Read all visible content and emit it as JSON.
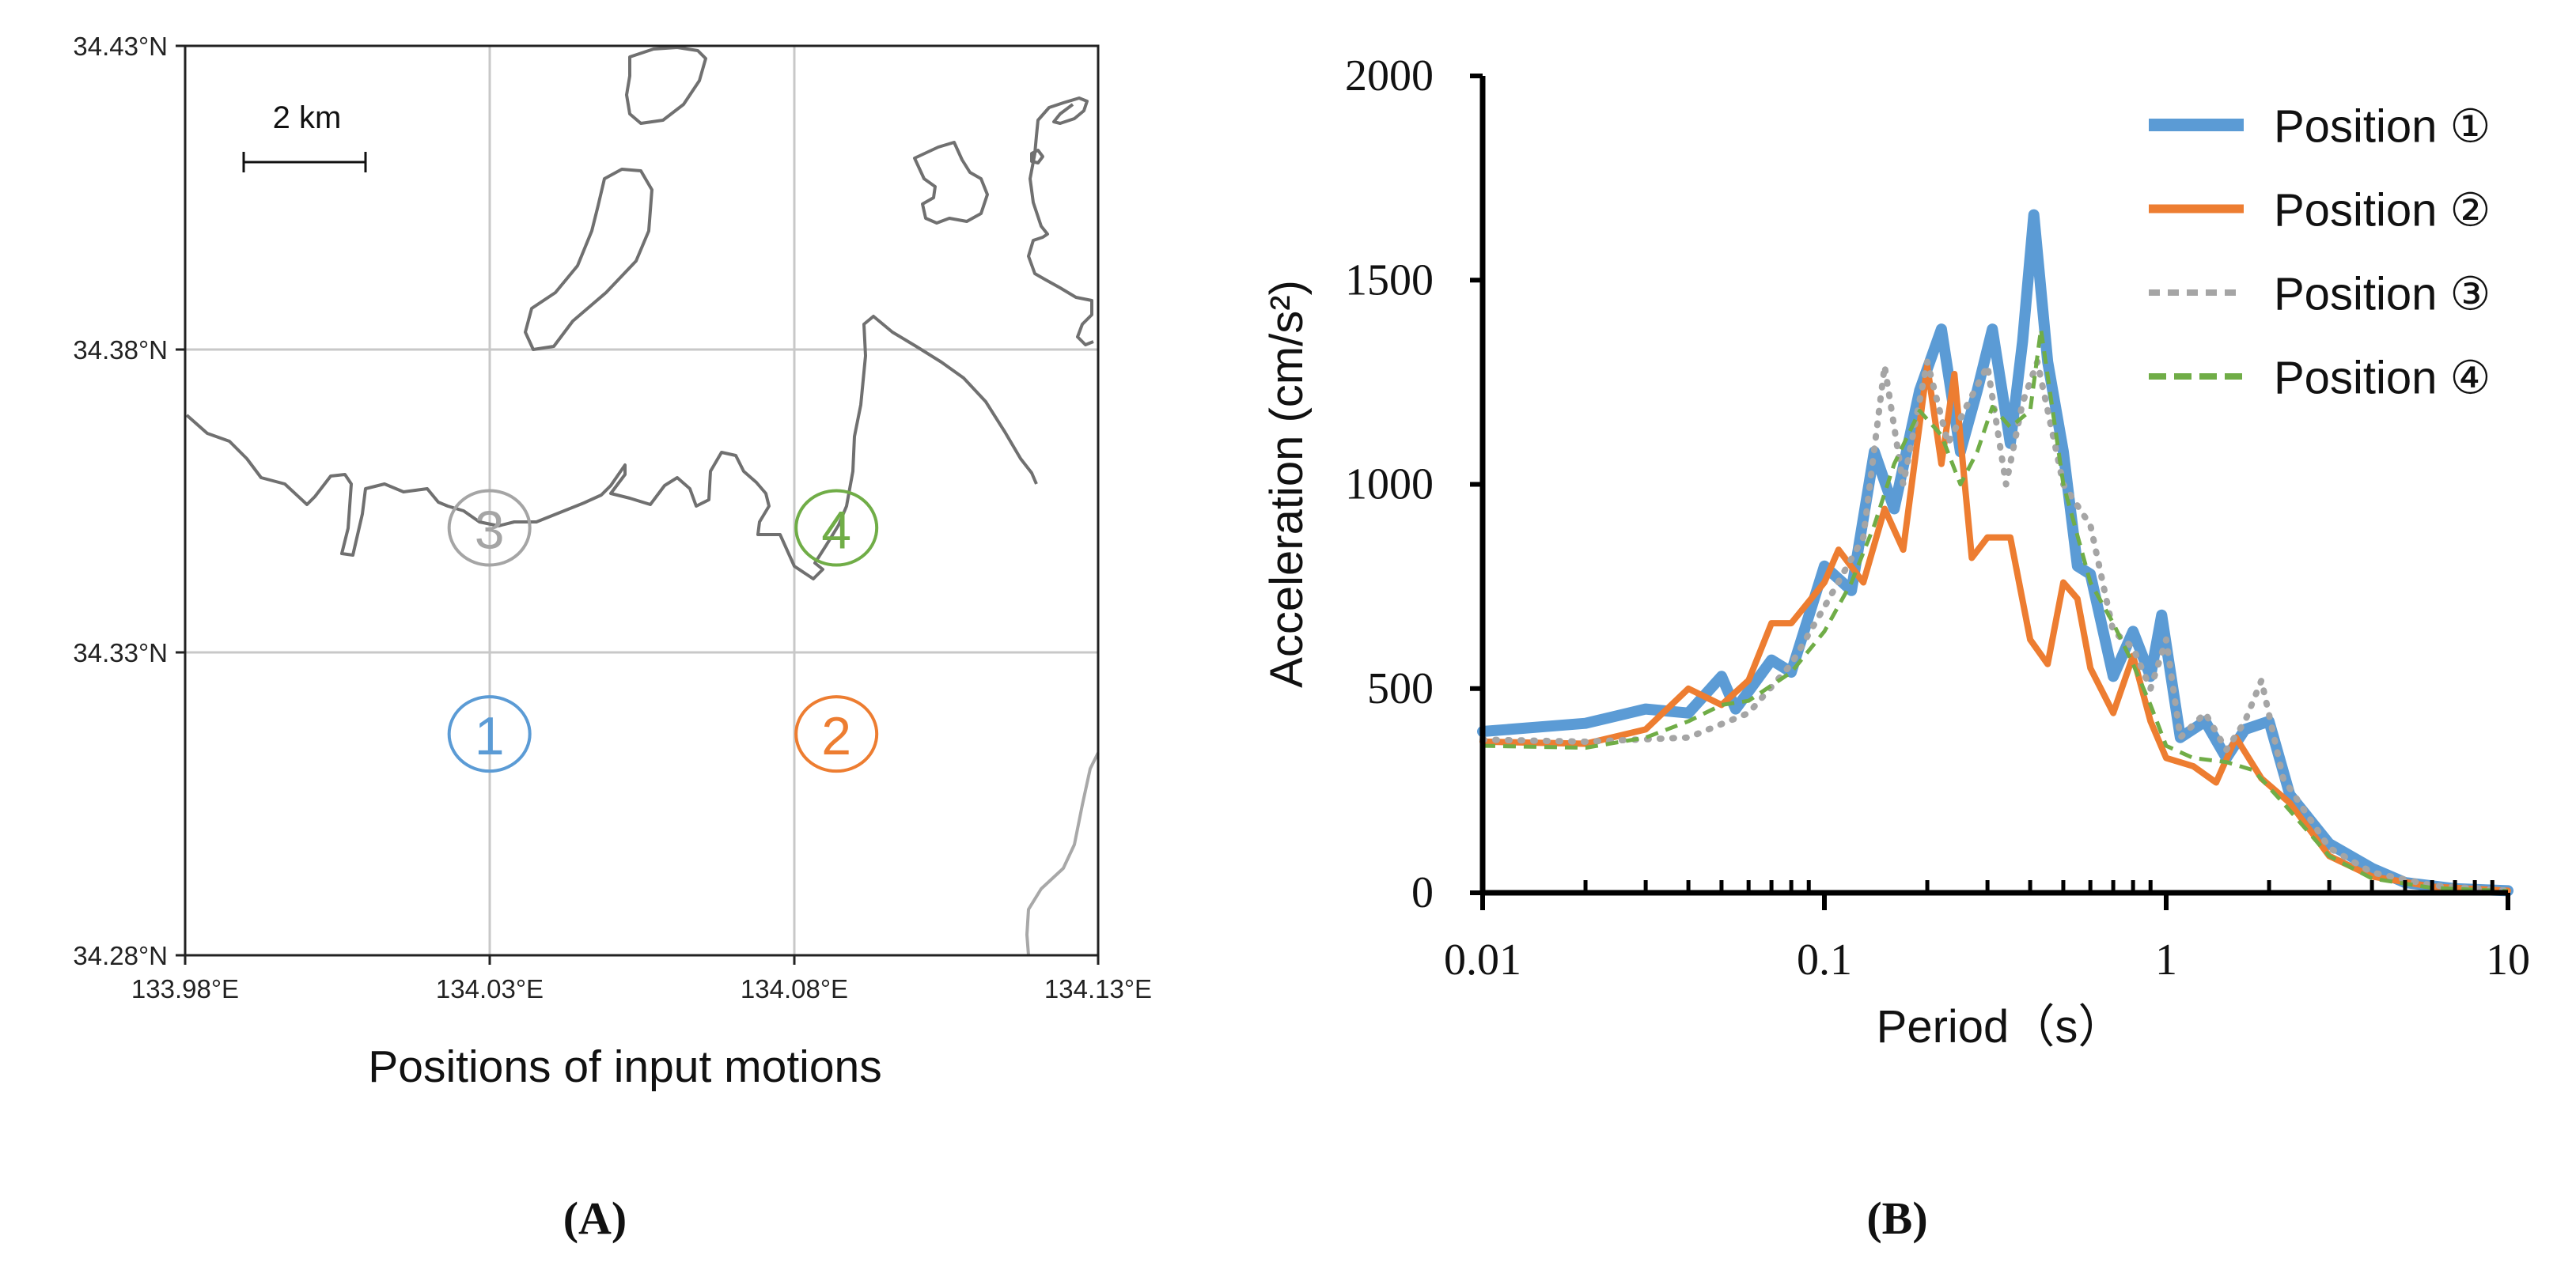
{
  "panel_a": {
    "caption": "Positions of input motions",
    "panel_label": "(A)",
    "scale_bar_label": "2 km",
    "lat_labels": [
      "34.43°N",
      "34.38°N",
      "34.33°N",
      "34.28°N"
    ],
    "lon_labels": [
      "133.98°E",
      "134.03°E",
      "134.08°E",
      "134.13°E"
    ],
    "markers": [
      {
        "label": "1",
        "color": "#5b9bd5",
        "lon": 134.03,
        "lat": 34.3165
      },
      {
        "label": "2",
        "color": "#ed7d31",
        "lon": 134.087,
        "lat": 34.3165
      },
      {
        "label": "3",
        "color": "#a5a5a5",
        "lon": 134.03,
        "lat": 34.3505
      },
      {
        "label": "4",
        "color": "#70ad47",
        "lon": 134.087,
        "lat": 34.3505
      }
    ],
    "coastline_color": "#707070",
    "grid_color": "#c8c8c8"
  },
  "panel_b": {
    "panel_label": "(B)"
  },
  "chart_data": {
    "type": "line",
    "title": "",
    "xlabel": "Period（s）",
    "ylabel": "Acceleration (cm/s²)",
    "xscale": "log",
    "xlim": [
      0.01,
      10
    ],
    "ylim": [
      0,
      2000
    ],
    "x_tick_labels": [
      "0.01",
      "0.1",
      "1",
      "10"
    ],
    "y_tick_labels": [
      "0",
      "500",
      "1000",
      "1500",
      "2000"
    ],
    "grid": false,
    "legend_position": "top-right",
    "series": [
      {
        "name": "Position ①",
        "color": "#5b9bd5",
        "style": "solid-thick",
        "points": [
          [
            0.01,
            395
          ],
          [
            0.02,
            415
          ],
          [
            0.03,
            450
          ],
          [
            0.04,
            440
          ],
          [
            0.05,
            530
          ],
          [
            0.055,
            450
          ],
          [
            0.07,
            570
          ],
          [
            0.08,
            540
          ],
          [
            0.1,
            800
          ],
          [
            0.12,
            740
          ],
          [
            0.14,
            1080
          ],
          [
            0.16,
            940
          ],
          [
            0.19,
            1230
          ],
          [
            0.22,
            1380
          ],
          [
            0.25,
            1080
          ],
          [
            0.28,
            1230
          ],
          [
            0.31,
            1380
          ],
          [
            0.35,
            1100
          ],
          [
            0.38,
            1350
          ],
          [
            0.41,
            1660
          ],
          [
            0.45,
            1300
          ],
          [
            0.5,
            1080
          ],
          [
            0.55,
            800
          ],
          [
            0.6,
            780
          ],
          [
            0.7,
            530
          ],
          [
            0.8,
            640
          ],
          [
            0.9,
            530
          ],
          [
            0.97,
            680
          ],
          [
            1.1,
            380
          ],
          [
            1.3,
            420
          ],
          [
            1.5,
            330
          ],
          [
            1.7,
            400
          ],
          [
            2.0,
            420
          ],
          [
            2.3,
            240
          ],
          [
            3.0,
            120
          ],
          [
            4.0,
            60
          ],
          [
            5.0,
            25
          ],
          [
            7.0,
            10
          ],
          [
            10.0,
            5
          ]
        ]
      },
      {
        "name": "Position ②",
        "color": "#ed7d31",
        "style": "solid",
        "points": [
          [
            0.01,
            370
          ],
          [
            0.02,
            365
          ],
          [
            0.03,
            400
          ],
          [
            0.04,
            500
          ],
          [
            0.05,
            460
          ],
          [
            0.06,
            520
          ],
          [
            0.07,
            660
          ],
          [
            0.08,
            660
          ],
          [
            0.1,
            760
          ],
          [
            0.11,
            840
          ],
          [
            0.13,
            760
          ],
          [
            0.15,
            940
          ],
          [
            0.17,
            840
          ],
          [
            0.2,
            1290
          ],
          [
            0.22,
            1050
          ],
          [
            0.24,
            1270
          ],
          [
            0.27,
            820
          ],
          [
            0.3,
            870
          ],
          [
            0.35,
            870
          ],
          [
            0.4,
            620
          ],
          [
            0.45,
            560
          ],
          [
            0.5,
            760
          ],
          [
            0.55,
            720
          ],
          [
            0.6,
            550
          ],
          [
            0.7,
            440
          ],
          [
            0.8,
            580
          ],
          [
            0.9,
            420
          ],
          [
            1.0,
            330
          ],
          [
            1.2,
            310
          ],
          [
            1.4,
            270
          ],
          [
            1.6,
            380
          ],
          [
            1.9,
            280
          ],
          [
            2.3,
            220
          ],
          [
            3.0,
            90
          ],
          [
            4.0,
            40
          ],
          [
            6.0,
            15
          ],
          [
            10.0,
            5
          ]
        ]
      },
      {
        "name": "Position ③",
        "color": "#a5a5a5",
        "style": "dotted",
        "points": [
          [
            0.01,
            375
          ],
          [
            0.02,
            370
          ],
          [
            0.04,
            380
          ],
          [
            0.06,
            440
          ],
          [
            0.08,
            560
          ],
          [
            0.1,
            700
          ],
          [
            0.13,
            870
          ],
          [
            0.15,
            1290
          ],
          [
            0.17,
            1000
          ],
          [
            0.2,
            1300
          ],
          [
            0.23,
            1100
          ],
          [
            0.26,
            1190
          ],
          [
            0.3,
            1290
          ],
          [
            0.34,
            1000
          ],
          [
            0.38,
            1200
          ],
          [
            0.42,
            1300
          ],
          [
            0.5,
            1000
          ],
          [
            0.6,
            900
          ],
          [
            0.7,
            640
          ],
          [
            0.8,
            600
          ],
          [
            0.9,
            500
          ],
          [
            1.0,
            620
          ],
          [
            1.1,
            380
          ],
          [
            1.3,
            440
          ],
          [
            1.5,
            350
          ],
          [
            1.7,
            420
          ],
          [
            1.9,
            520
          ],
          [
            2.2,
            280
          ],
          [
            3.0,
            110
          ],
          [
            4.0,
            50
          ],
          [
            6.0,
            18
          ],
          [
            10.0,
            5
          ]
        ]
      },
      {
        "name": "Position ④",
        "color": "#70ad47",
        "style": "dashed",
        "points": [
          [
            0.01,
            360
          ],
          [
            0.02,
            355
          ],
          [
            0.03,
            380
          ],
          [
            0.04,
            420
          ],
          [
            0.05,
            460
          ],
          [
            0.06,
            470
          ],
          [
            0.08,
            540
          ],
          [
            0.1,
            640
          ],
          [
            0.12,
            760
          ],
          [
            0.14,
            900
          ],
          [
            0.16,
            1050
          ],
          [
            0.19,
            1180
          ],
          [
            0.22,
            1120
          ],
          [
            0.25,
            1000
          ],
          [
            0.28,
            1080
          ],
          [
            0.31,
            1190
          ],
          [
            0.35,
            1140
          ],
          [
            0.4,
            1180
          ],
          [
            0.43,
            1380
          ],
          [
            0.5,
            1000
          ],
          [
            0.6,
            760
          ],
          [
            0.7,
            660
          ],
          [
            0.8,
            560
          ],
          [
            0.9,
            460
          ],
          [
            1.0,
            360
          ],
          [
            1.2,
            330
          ],
          [
            1.5,
            320
          ],
          [
            1.8,
            300
          ],
          [
            2.2,
            220
          ],
          [
            3.0,
            90
          ],
          [
            4.0,
            35
          ],
          [
            6.0,
            12
          ],
          [
            10.0,
            4
          ]
        ]
      }
    ]
  }
}
